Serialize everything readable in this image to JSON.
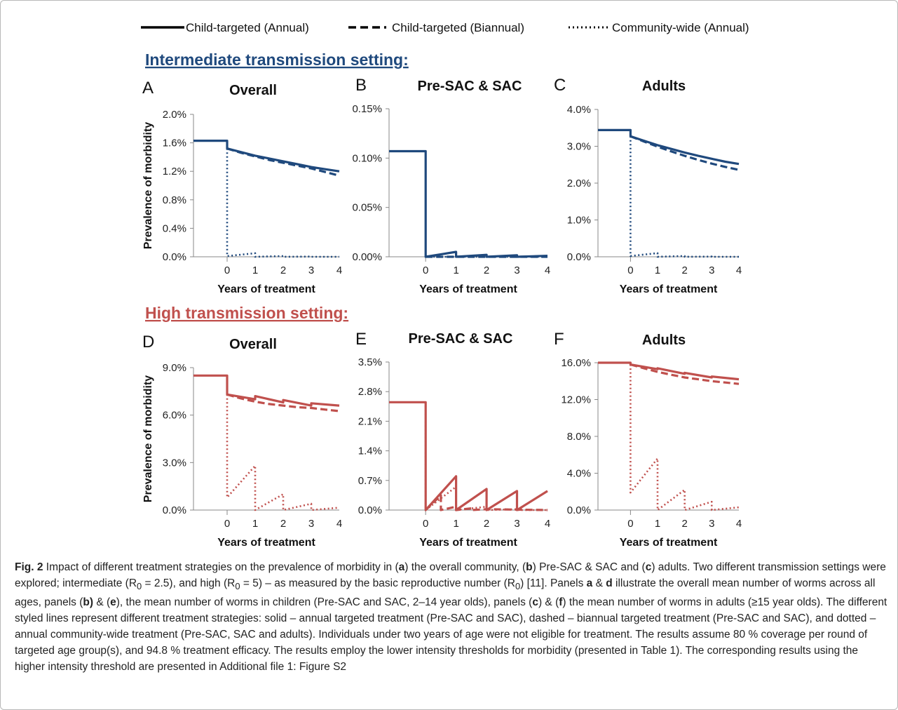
{
  "legend": [
    {
      "label": "Child-targeted (Annual)",
      "style": "solid"
    },
    {
      "label": "Child-targeted (Biannual)",
      "style": "dashed"
    },
    {
      "label": "Community-wide (Annual)",
      "style": "dotted"
    }
  ],
  "sections": {
    "intermediate": {
      "title": "Intermediate transmission setting:",
      "color": "#1f497d"
    },
    "high": {
      "title": "High transmission setting:",
      "color": "#c0504d"
    }
  },
  "chart_data": [
    {
      "letter": "A",
      "title": "Overall",
      "type": "line",
      "setting": "intermediate",
      "xlabel": "Years of treatment",
      "ylabel": "Prevalence of morbidity",
      "xlim": [
        -1.2,
        4
      ],
      "ylim": [
        0,
        2.0
      ],
      "xticks": [
        "0",
        "1",
        "2",
        "3",
        "4"
      ],
      "xtick_values": [
        0,
        1,
        2,
        3,
        4
      ],
      "yticks": [
        "0.0%",
        "0.4%",
        "0.8%",
        "1.2%",
        "1.6%",
        "2.0%"
      ],
      "ytick_values": [
        0,
        0.4,
        0.8,
        1.2,
        1.6,
        2.0
      ],
      "series": [
        {
          "name": "Child-targeted (Annual)",
          "style": "solid",
          "x": [
            -1.2,
            0,
            0,
            0.5,
            1,
            1.5,
            2,
            2.5,
            3,
            3.5,
            4
          ],
          "y": [
            1.63,
            1.63,
            1.52,
            1.47,
            1.42,
            1.38,
            1.34,
            1.3,
            1.26,
            1.23,
            1.2
          ]
        },
        {
          "name": "Child-targeted (Biannual)",
          "style": "dashed",
          "x": [
            0,
            0.5,
            1,
            1.5,
            2,
            2.5,
            3,
            3.5,
            4
          ],
          "y": [
            1.52,
            1.46,
            1.41,
            1.36,
            1.32,
            1.28,
            1.24,
            1.19,
            1.14
          ]
        },
        {
          "name": "Community-wide (Annual)",
          "style": "dotted",
          "x": [
            0,
            0,
            1,
            1,
            2,
            2,
            3,
            3,
            4
          ],
          "y": [
            1.52,
            0.01,
            0.05,
            0.0,
            0.01,
            0.0,
            0.003,
            0.0,
            0.0
          ]
        }
      ]
    },
    {
      "letter": "B",
      "title": "Pre-SAC & SAC",
      "type": "line",
      "setting": "intermediate",
      "xlabel": "Years of treatment",
      "ylabel": "",
      "xlim": [
        -1.2,
        4
      ],
      "ylim": [
        0,
        0.15
      ],
      "xticks": [
        "0",
        "1",
        "2",
        "3",
        "4"
      ],
      "xtick_values": [
        0,
        1,
        2,
        3,
        4
      ],
      "yticks": [
        "0.00%",
        "0.05%",
        "0.10%",
        "0.15%"
      ],
      "ytick_values": [
        0,
        0.05,
        0.1,
        0.15
      ],
      "series": [
        {
          "name": "Child-targeted (Annual)",
          "style": "solid",
          "x": [
            -1.2,
            0,
            0,
            1,
            1,
            2,
            2,
            3,
            3,
            4
          ],
          "y": [
            0.107,
            0.107,
            0.0,
            0.005,
            0.0,
            0.002,
            0.0,
            0.0015,
            0.0,
            0.001
          ]
        },
        {
          "name": "Child-targeted (Biannual)",
          "style": "dashed",
          "x": [
            0,
            4
          ],
          "y": [
            0.0,
            0.0
          ]
        },
        {
          "name": "Community-wide (Annual)",
          "style": "dotted",
          "x": [
            0,
            1,
            4
          ],
          "y": [
            0.0,
            0.0,
            0.0
          ]
        }
      ]
    },
    {
      "letter": "C",
      "title": "Adults",
      "type": "line",
      "setting": "intermediate",
      "xlabel": "Years of treatment",
      "ylabel": "",
      "xlim": [
        -1.2,
        4
      ],
      "ylim": [
        0,
        4.0
      ],
      "xticks": [
        "0",
        "1",
        "2",
        "3",
        "4"
      ],
      "xtick_values": [
        0,
        1,
        2,
        3,
        4
      ],
      "yticks": [
        "0.0%",
        "1.0%",
        "2.0%",
        "3.0%",
        "4.0%"
      ],
      "ytick_values": [
        0,
        1,
        2,
        3,
        4
      ],
      "series": [
        {
          "name": "Child-targeted (Annual)",
          "style": "solid",
          "x": [
            -1.2,
            0,
            0,
            0.5,
            1,
            1.5,
            2,
            2.5,
            3,
            3.5,
            4
          ],
          "y": [
            3.44,
            3.44,
            3.27,
            3.15,
            3.03,
            2.93,
            2.83,
            2.74,
            2.66,
            2.58,
            2.52
          ]
        },
        {
          "name": "Child-targeted (Biannual)",
          "style": "dashed",
          "x": [
            0,
            0.5,
            1,
            1.5,
            2,
            2.5,
            3,
            3.5,
            4
          ],
          "y": [
            3.27,
            3.13,
            2.99,
            2.86,
            2.74,
            2.63,
            2.53,
            2.44,
            2.36
          ]
        },
        {
          "name": "Community-wide (Annual)",
          "style": "dotted",
          "x": [
            0,
            0,
            1,
            1,
            2,
            2,
            3,
            3,
            4
          ],
          "y": [
            3.27,
            0.02,
            0.1,
            0.0,
            0.02,
            0.0,
            0.005,
            0.0,
            0.0
          ]
        }
      ]
    },
    {
      "letter": "D",
      "title": "Overall",
      "type": "line",
      "setting": "high",
      "xlabel": "Years of treatment",
      "ylabel": "Prevalence of morbidity",
      "xlim": [
        -1.2,
        4
      ],
      "ylim": [
        0,
        9.0
      ],
      "xticks": [
        "0",
        "1",
        "2",
        "3",
        "4"
      ],
      "xtick_values": [
        0,
        1,
        2,
        3,
        4
      ],
      "yticks": [
        "0.0%",
        "3.0%",
        "6.0%",
        "9.0%"
      ],
      "ytick_values": [
        0,
        3,
        6,
        9
      ],
      "series": [
        {
          "name": "Child-targeted (Annual)",
          "style": "solid",
          "x": [
            -1.2,
            0,
            0,
            1,
            1,
            2,
            2,
            3,
            3,
            4
          ],
          "y": [
            8.5,
            8.5,
            7.3,
            7.0,
            7.2,
            6.8,
            6.95,
            6.6,
            6.75,
            6.6
          ]
        },
        {
          "name": "Child-targeted (Biannual)",
          "style": "dashed",
          "x": [
            0,
            0.5,
            1,
            1.5,
            2,
            2.5,
            3,
            3.5,
            4
          ],
          "y": [
            7.3,
            7.05,
            6.85,
            6.7,
            6.6,
            6.5,
            6.45,
            6.35,
            6.25
          ]
        },
        {
          "name": "Community-wide (Annual)",
          "style": "dotted",
          "x": [
            0,
            0,
            1,
            1,
            2,
            2,
            3,
            3,
            4
          ],
          "y": [
            7.3,
            0.8,
            2.8,
            0.0,
            1.0,
            0.0,
            0.4,
            0.0,
            0.15
          ]
        }
      ]
    },
    {
      "letter": "E",
      "title": "Pre-SAC & SAC",
      "type": "line",
      "setting": "high",
      "xlabel": "Years of treatment",
      "ylabel": "",
      "xlim": [
        -1.2,
        4
      ],
      "ylim": [
        0,
        3.5
      ],
      "xticks": [
        "0",
        "1",
        "2",
        "3",
        "4"
      ],
      "xtick_values": [
        0,
        1,
        2,
        3,
        4
      ],
      "yticks": [
        "0.0%",
        "0.7%",
        "1.4%",
        "2.1%",
        "2.8%",
        "3.5%"
      ],
      "ytick_values": [
        0,
        0.7,
        1.4,
        2.1,
        2.8,
        3.5
      ],
      "series": [
        {
          "name": "Child-targeted (Annual)",
          "style": "solid",
          "x": [
            -1.2,
            0,
            0,
            1,
            1,
            2,
            2,
            3,
            3,
            4
          ],
          "y": [
            2.55,
            2.55,
            0.0,
            0.8,
            0.0,
            0.5,
            0.0,
            0.45,
            0.0,
            0.45
          ]
        },
        {
          "name": "Child-targeted (Biannual)",
          "style": "dashed",
          "x": [
            0,
            0.5,
            0.5,
            1,
            1,
            1.5,
            1.5,
            2,
            4
          ],
          "y": [
            0.0,
            0.35,
            0.0,
            0.08,
            0.0,
            0.04,
            0.0,
            0.02,
            0.0
          ]
        },
        {
          "name": "Community-wide (Annual)",
          "style": "dotted",
          "x": [
            0,
            0,
            1,
            1,
            2,
            2,
            3,
            3,
            4
          ],
          "y": [
            2.55,
            0.0,
            0.55,
            0.0,
            0.08,
            0.0,
            0.02,
            0.0,
            0.0
          ]
        }
      ]
    },
    {
      "letter": "F",
      "title": "Adults",
      "type": "line",
      "setting": "high",
      "xlabel": "Years of treatment",
      "ylabel": "",
      "xlim": [
        -1.2,
        4
      ],
      "ylim": [
        0,
        16.0
      ],
      "xticks": [
        "0",
        "1",
        "2",
        "3",
        "4"
      ],
      "xtick_values": [
        0,
        1,
        2,
        3,
        4
      ],
      "yticks": [
        "0.0%",
        "4.0%",
        "8.0%",
        "12.0%",
        "16.0%"
      ],
      "ytick_values": [
        0,
        4,
        8,
        12,
        16
      ],
      "series": [
        {
          "name": "Child-targeted (Annual)",
          "style": "solid",
          "x": [
            -1.2,
            0,
            0,
            1,
            1,
            2,
            2,
            3,
            3,
            4
          ],
          "y": [
            16.0,
            16.0,
            15.8,
            15.3,
            15.4,
            14.8,
            14.9,
            14.4,
            14.5,
            14.2
          ]
        },
        {
          "name": "Child-targeted (Biannual)",
          "style": "dashed",
          "x": [
            0,
            0.5,
            1,
            1.5,
            2,
            2.5,
            3,
            3.5,
            4
          ],
          "y": [
            15.8,
            15.4,
            15.0,
            14.7,
            14.4,
            14.2,
            14.0,
            13.85,
            13.7
          ]
        },
        {
          "name": "Community-wide (Annual)",
          "style": "dotted",
          "x": [
            0,
            0,
            1,
            1,
            2,
            2,
            3,
            3,
            4
          ],
          "y": [
            15.8,
            1.9,
            5.6,
            0.0,
            2.2,
            0.0,
            0.9,
            0.0,
            0.3
          ]
        }
      ]
    }
  ],
  "caption": {
    "fig_label": "Fig. 2",
    "html": " Impact of different treatment strategies on the prevalence of morbidity in (<b>a</b>) the overall community, (<b>b</b>) Pre-SAC &amp; SAC and (<b>c</b>) adults. Two different transmission settings were explored; intermediate (R<sub>0</sub> = 2.5), and high (R<sub>0</sub> = 5) – as measured by the basic reproductive number (R<sub>0</sub>) [11]. Panels <b>a</b> &amp; <b>d</b> illustrate the overall mean number of worms across all ages, panels (<b>b)</b> &amp; (<b>e</b>), the mean number of worms in children (Pre-SAC and SAC, 2–14 year olds), panels (<b>c</b>) &amp; (<b>f</b>) the mean number of worms in adults (≥15 year olds). The different styled lines represent different treatment strategies: solid – annual targeted treatment (Pre-SAC and SAC), dashed – biannual targeted treatment (Pre-SAC and SAC), and dotted – annual community-wide treatment (Pre-SAC, SAC and adults). Individuals under two years of age were not eligible for treatment. The results assume 80 % coverage per round of targeted age group(s), and 94.8 % treatment efficacy. The results employ the lower intensity thresholds for morbidity (presented in Table 1). The corresponding results using the higher intensity threshold are presented in Additional file 1: Figure S2"
  }
}
